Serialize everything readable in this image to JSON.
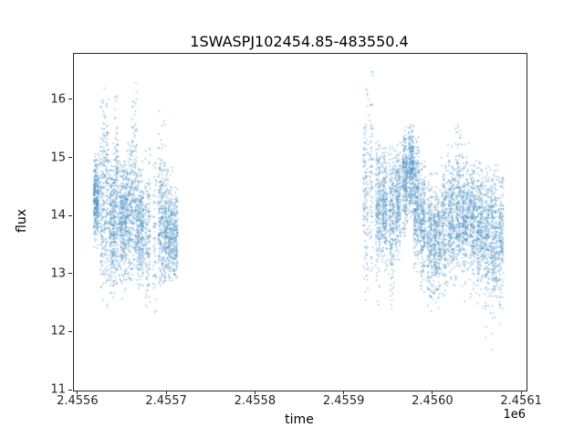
{
  "chart_data": {
    "type": "scatter",
    "title": "1SWASPJ102454.85-483550.4",
    "xlabel": "time",
    "ylabel": "flux",
    "x_offset_label": "1e6",
    "xlim": [
      2455595,
      2456105
    ],
    "ylim": [
      11.0,
      16.8
    ],
    "grid": false,
    "legend": "none",
    "marker_color": "#4a90c2",
    "marker_alpha": 0.55,
    "marker_size_px": 1.5,
    "xticks": {
      "values": [
        2455600,
        2455700,
        2455800,
        2455900,
        2456000,
        2456100
      ],
      "labels": [
        "2.4556",
        "2.4557",
        "2.4558",
        "2.4559",
        "2.4560",
        "2.4561"
      ]
    },
    "yticks": {
      "values": [
        11,
        12,
        13,
        14,
        15,
        16
      ],
      "labels": [
        "11",
        "12",
        "13",
        "14",
        "15",
        "16"
      ]
    },
    "points_spec": {
      "columns": [
        "x_center",
        "x_halfwidth",
        "count",
        "flux_mean",
        "flux_sigma",
        "flux_min",
        "flux_max"
      ],
      "seed": 42,
      "segments": [
        [
          2455620,
          3,
          350,
          14.3,
          0.35,
          12.8,
          15.2
        ],
        [
          2455626,
          2,
          120,
          14.2,
          0.8,
          12.3,
          16.0
        ],
        [
          2455631,
          3,
          200,
          14.3,
          0.9,
          12.4,
          16.5
        ],
        [
          2455638,
          3,
          280,
          13.9,
          0.55,
          12.6,
          15.3
        ],
        [
          2455643,
          2,
          180,
          14.2,
          0.8,
          12.8,
          16.2
        ],
        [
          2455650,
          4,
          350,
          13.9,
          0.5,
          12.1,
          15.0
        ],
        [
          2455657,
          3,
          220,
          14.0,
          0.6,
          12.9,
          15.5
        ],
        [
          2455663,
          3,
          200,
          14.3,
          0.85,
          12.9,
          16.3
        ],
        [
          2455670,
          4,
          320,
          13.8,
          0.5,
          12.6,
          15.0
        ],
        [
          2455678,
          3,
          150,
          13.7,
          0.6,
          12.4,
          15.2
        ],
        [
          2455686,
          2,
          60,
          13.6,
          0.8,
          11.7,
          15.0
        ],
        [
          2455694,
          4,
          280,
          13.8,
          0.7,
          12.8,
          16.0
        ],
        [
          2455702,
          4,
          300,
          13.7,
          0.45,
          12.8,
          15.0
        ],
        [
          2455709,
          3,
          200,
          13.6,
          0.4,
          12.9,
          14.6
        ],
        [
          2455924,
          3,
          140,
          14.4,
          0.8,
          12.5,
          16.3
        ],
        [
          2455930,
          2,
          80,
          14.6,
          0.9,
          13.0,
          16.5
        ],
        [
          2455938,
          3,
          220,
          14.1,
          0.6,
          12.4,
          15.3
        ],
        [
          2455945,
          3,
          250,
          14.2,
          0.5,
          13.0,
          15.2
        ],
        [
          2455953,
          3,
          230,
          14.0,
          0.6,
          12.3,
          15.2
        ],
        [
          2455960,
          3,
          250,
          14.2,
          0.5,
          13.2,
          15.3
        ],
        [
          2455968,
          3,
          280,
          14.6,
          0.45,
          13.4,
          15.6
        ],
        [
          2455975,
          3,
          300,
          14.8,
          0.4,
          13.6,
          15.6
        ],
        [
          2455981,
          3,
          280,
          14.3,
          0.5,
          13.0,
          15.4
        ],
        [
          2455988,
          3,
          250,
          13.9,
          0.5,
          12.2,
          15.0
        ],
        [
          2455996,
          3,
          220,
          13.6,
          0.5,
          12.0,
          14.8
        ],
        [
          2456004,
          4,
          300,
          13.6,
          0.45,
          12.4,
          14.8
        ],
        [
          2456012,
          3,
          200,
          13.8,
          0.6,
          12.6,
          16.0
        ],
        [
          2456020,
          4,
          280,
          14.0,
          0.5,
          12.8,
          15.3
        ],
        [
          2456028,
          3,
          240,
          14.1,
          0.55,
          12.9,
          15.9
        ],
        [
          2456036,
          4,
          300,
          14.0,
          0.5,
          12.4,
          15.4
        ],
        [
          2456044,
          3,
          240,
          13.9,
          0.5,
          12.6,
          15.2
        ],
        [
          2456052,
          4,
          300,
          13.8,
          0.5,
          12.2,
          15.0
        ],
        [
          2456060,
          3,
          220,
          13.7,
          0.55,
          11.9,
          14.9
        ],
        [
          2456068,
          4,
          280,
          13.7,
          0.6,
          11.3,
          14.9
        ],
        [
          2456076,
          3,
          200,
          13.6,
          0.55,
          11.4,
          14.7
        ]
      ]
    }
  }
}
